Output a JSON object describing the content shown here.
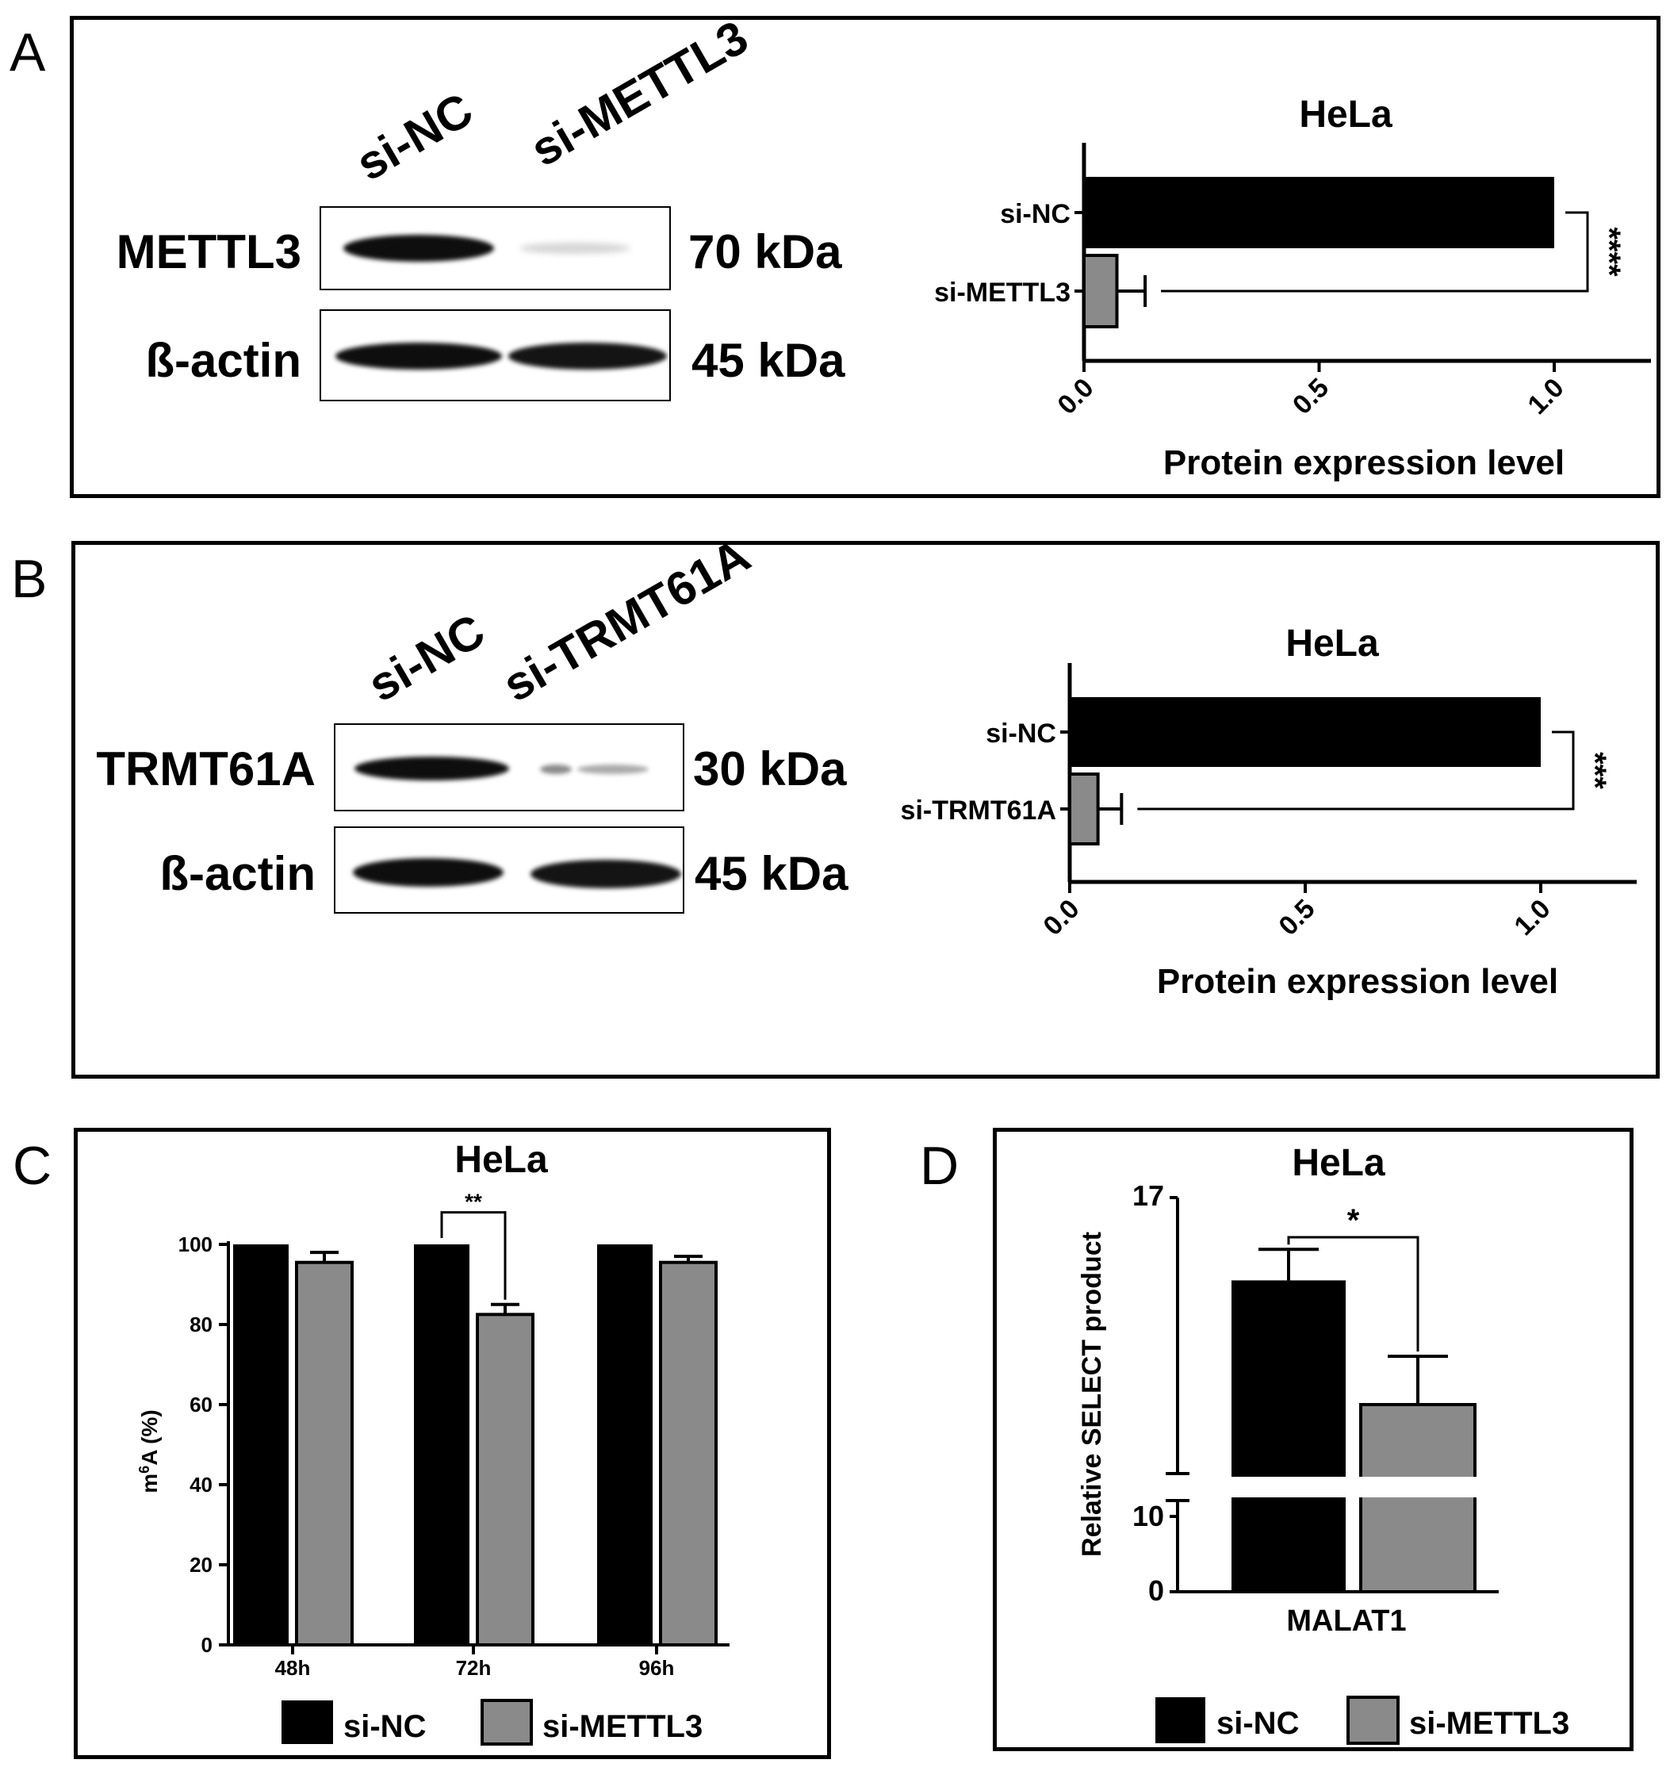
{
  "panels": {
    "A": {
      "label": "A",
      "lanes": [
        "si-NC",
        "si-METTL3"
      ],
      "blots": [
        {
          "protein": "METTL3",
          "size": "70 kDa"
        },
        {
          "protein": "ß-actin",
          "size": "45 kDa"
        }
      ]
    },
    "B": {
      "label": "B",
      "lanes": [
        "si-NC",
        "si-TRMT61A"
      ],
      "blots": [
        {
          "protein": "TRMT61A",
          "size": "30 kDa"
        },
        {
          "protein": "ß-actin",
          "size": "45 kDa"
        }
      ]
    },
    "C": {
      "label": "C"
    },
    "D": {
      "label": "D"
    }
  },
  "legend": {
    "si_nc": "si-NC",
    "si_mettl3": "si-METTL3"
  },
  "colors": {
    "black_bar": "#000000",
    "gray_bar": "#8a8a8a"
  },
  "chart_data": [
    {
      "id": "A",
      "type": "bar",
      "orientation": "horizontal",
      "title": "HeLa",
      "categories": [
        "si-NC",
        "si-METTL3"
      ],
      "values": [
        1.0,
        0.07
      ],
      "errors": [
        0,
        0.06
      ],
      "xlim": [
        0,
        1.2
      ],
      "ticks": [
        "0.0",
        "0.5",
        "1.0"
      ],
      "tick_values": [
        0,
        0.5,
        1.0
      ],
      "xlabel": "Protein expression level",
      "significance": "****"
    },
    {
      "id": "B",
      "type": "bar",
      "orientation": "horizontal",
      "title": "HeLa",
      "categories": [
        "si-NC",
        "si-TRMT61A"
      ],
      "values": [
        1.0,
        0.06
      ],
      "errors": [
        0,
        0.05
      ],
      "xlim": [
        0,
        1.2
      ],
      "ticks": [
        "0.0",
        "0.5",
        "1.0"
      ],
      "tick_values": [
        0,
        0.5,
        1.0
      ],
      "xlabel": "Protein expression level",
      "significance": "***"
    },
    {
      "id": "C",
      "type": "bar",
      "title": "HeLa",
      "categories": [
        "48h",
        "72h",
        "96h"
      ],
      "series": [
        {
          "name": "si-NC",
          "values": [
            100,
            100,
            100
          ],
          "errors": [
            0,
            0,
            0
          ]
        },
        {
          "name": "si-METTL3",
          "values": [
            95.5,
            82.5,
            95.5
          ],
          "errors": [
            2.5,
            2.5,
            1.5
          ]
        }
      ],
      "ylim": [
        0,
        100
      ],
      "yticks": [
        0,
        20,
        40,
        60,
        80,
        100
      ],
      "ylabel_base": "m",
      "ylabel_sup": "6",
      "ylabel_rest": "A (%)",
      "significance": [
        {
          "category": "72h",
          "mark": "**"
        }
      ]
    },
    {
      "id": "D",
      "type": "bar",
      "title": "HeLa",
      "categories": [
        "MALAT1"
      ],
      "series": [
        {
          "name": "si-NC",
          "values": [
            15.8
          ],
          "errors": [
            0.45
          ]
        },
        {
          "name": "si-METTL3",
          "values": [
            14.0
          ],
          "errors": [
            0.7
          ]
        }
      ],
      "ylabel": "Relative SELECT product",
      "yticks": [
        0,
        10,
        17
      ],
      "axis_break": true,
      "significance": "*"
    }
  ]
}
